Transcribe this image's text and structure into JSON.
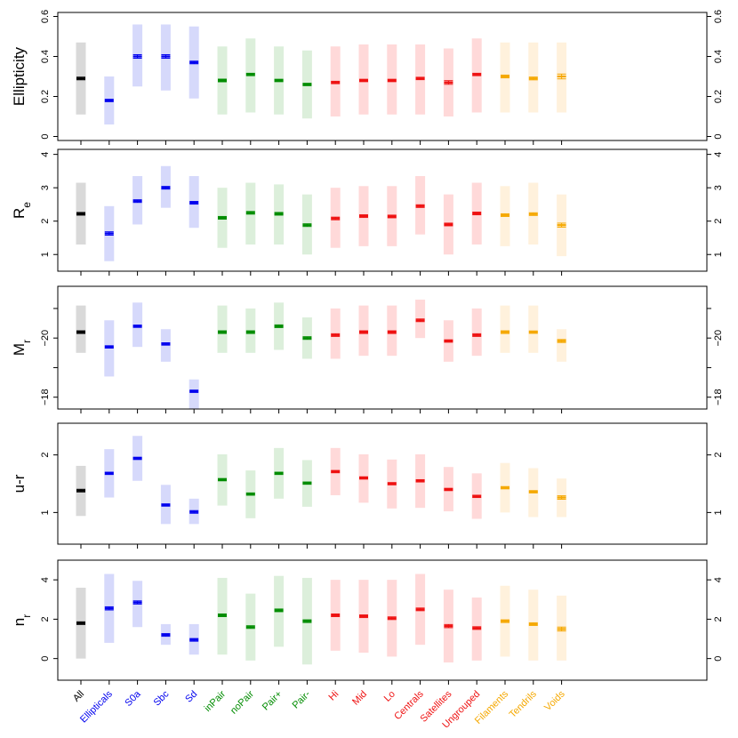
{
  "chart_data": {
    "type": "errorbar-panels",
    "categories": [
      {
        "label": "All",
        "group": "all"
      },
      {
        "label": "Ellipticals",
        "group": "morph"
      },
      {
        "label": "S0a",
        "group": "morph"
      },
      {
        "label": "Sbc",
        "group": "morph"
      },
      {
        "label": "Sd",
        "group": "morph"
      },
      {
        "label": "inPair",
        "group": "pair"
      },
      {
        "label": "noPair",
        "group": "pair"
      },
      {
        "label": "Pair+",
        "group": "pair"
      },
      {
        "label": "Pair-",
        "group": "pair"
      },
      {
        "label": "Hi",
        "group": "group"
      },
      {
        "label": "Mid",
        "group": "group"
      },
      {
        "label": "Lo",
        "group": "group"
      },
      {
        "label": "Centrals",
        "group": "group"
      },
      {
        "label": "Satellites",
        "group": "group"
      },
      {
        "label": "Ungrouped",
        "group": "group"
      },
      {
        "label": "Filaments",
        "group": "web"
      },
      {
        "label": "Tendrils",
        "group": "web"
      },
      {
        "label": "Voids",
        "group": "web"
      }
    ],
    "group_colors": {
      "all": {
        "solid": "#000000",
        "band": "#d9d9d9"
      },
      "morph": {
        "solid": "#0000ee",
        "band": "#d6d9fb"
      },
      "pair": {
        "solid": "#008c00",
        "band": "#dcefdb"
      },
      "group": {
        "solid": "#ee1111",
        "band": "#ffd9d9"
      },
      "web": {
        "solid": "#f5a800",
        "band": "#fff1dc"
      }
    },
    "panels": [
      {
        "ylabel": "Ellipticity",
        "ylim": [
          -0.02,
          0.62
        ],
        "ticks": [
          0,
          0.2,
          0.4,
          0.6
        ],
        "tick_labels": [
          "0",
          "0.2",
          "0.4",
          "0.6"
        ],
        "median": [
          0.29,
          0.18,
          0.4,
          0.4,
          0.37,
          0.28,
          0.31,
          0.28,
          0.26,
          0.27,
          0.28,
          0.28,
          0.29,
          0.27,
          0.31,
          0.3,
          0.29,
          0.3
        ],
        "err": [
          0.004,
          0.006,
          0.009,
          0.009,
          0.005,
          0.005,
          0.006,
          0.006,
          0.006,
          0.006,
          0.006,
          0.006,
          0.006,
          0.009,
          0.006,
          0.007,
          0.007,
          0.012
        ],
        "low": [
          0.11,
          0.06,
          0.25,
          0.23,
          0.19,
          0.11,
          0.12,
          0.11,
          0.09,
          0.1,
          0.11,
          0.11,
          0.11,
          0.1,
          0.12,
          0.12,
          0.12,
          0.12
        ],
        "high": [
          0.47,
          0.3,
          0.56,
          0.56,
          0.55,
          0.45,
          0.49,
          0.45,
          0.43,
          0.45,
          0.46,
          0.46,
          0.46,
          0.44,
          0.49,
          0.47,
          0.47,
          0.47
        ]
      },
      {
        "ylabel": "R",
        "ylabel_sub": "e",
        "ylim": [
          0.5,
          4.15
        ],
        "ticks": [
          1,
          2,
          3,
          4
        ],
        "tick_labels": [
          "1",
          "2",
          "3",
          "4"
        ],
        "median": [
          2.22,
          1.63,
          2.6,
          3.0,
          2.55,
          2.1,
          2.25,
          2.22,
          1.88,
          2.08,
          2.15,
          2.14,
          2.45,
          1.9,
          2.23,
          2.18,
          2.21,
          1.88
        ],
        "err": [
          0.02,
          0.05,
          0.04,
          0.03,
          0.04,
          0.02,
          0.02,
          0.03,
          0.03,
          0.03,
          0.03,
          0.03,
          0.03,
          0.04,
          0.02,
          0.04,
          0.04,
          0.06
        ],
        "low": [
          1.3,
          0.8,
          1.9,
          2.4,
          1.8,
          1.2,
          1.3,
          1.3,
          1.0,
          1.2,
          1.25,
          1.25,
          1.6,
          1.0,
          1.3,
          1.25,
          1.3,
          0.95
        ],
        "high": [
          3.15,
          2.45,
          3.35,
          3.65,
          3.35,
          3.0,
          3.15,
          3.1,
          2.8,
          3.0,
          3.05,
          3.05,
          3.35,
          2.8,
          3.15,
          3.05,
          3.15,
          2.8
        ]
      },
      {
        "ylabel": "M",
        "ylabel_sub": "r",
        "ylim": [
          -21.75,
          -17.6
        ],
        "invert": true,
        "ticks": [
          -18,
          -20
        ],
        "tick_labels": [
          "−18",
          "−20"
        ],
        "minor_ticks": [
          -19,
          -21
        ],
        "median": [
          -20.2,
          -19.7,
          -20.4,
          -19.8,
          -18.2,
          -20.2,
          -20.2,
          -20.4,
          -20.0,
          -20.1,
          -20.2,
          -20.2,
          -20.6,
          -19.9,
          -20.1,
          -20.2,
          -20.2,
          -19.9
        ],
        "err": [
          0.02,
          0.04,
          0.04,
          0.04,
          0.04,
          0.03,
          0.03,
          0.03,
          0.03,
          0.03,
          0.03,
          0.03,
          0.03,
          0.04,
          0.03,
          0.03,
          0.04,
          0.05
        ],
        "low": [
          -21.1,
          -20.6,
          -21.2,
          -20.3,
          -18.6,
          -21.1,
          -21.0,
          -21.2,
          -20.7,
          -21.0,
          -21.1,
          -21.1,
          -21.3,
          -20.6,
          -21.0,
          -21.1,
          -21.1,
          -20.3
        ],
        "high": [
          -19.5,
          -18.7,
          -19.7,
          -19.2,
          -17.6,
          -19.5,
          -19.5,
          -19.6,
          -19.3,
          -19.3,
          -19.4,
          -19.4,
          -20.0,
          -19.2,
          -19.4,
          -19.5,
          -19.5,
          -19.2
        ]
      },
      {
        "ylabel": "u-r",
        "ylim": [
          0.45,
          2.55
        ],
        "ticks": [
          1,
          2
        ],
        "tick_labels": [
          "1",
          "2"
        ],
        "median": [
          1.38,
          1.68,
          1.94,
          1.13,
          1.01,
          1.57,
          1.32,
          1.68,
          1.51,
          1.71,
          1.6,
          1.5,
          1.55,
          1.4,
          1.28,
          1.43,
          1.36,
          1.26
        ],
        "err": [
          0.01,
          0.02,
          0.02,
          0.02,
          0.01,
          0.02,
          0.02,
          0.02,
          0.02,
          0.02,
          0.02,
          0.02,
          0.02,
          0.02,
          0.02,
          0.02,
          0.02,
          0.03
        ],
        "low": [
          0.94,
          1.26,
          1.55,
          0.8,
          0.8,
          1.12,
          0.9,
          1.24,
          1.1,
          1.3,
          1.17,
          1.07,
          1.08,
          1.02,
          0.89,
          1.0,
          0.92,
          0.92
        ],
        "high": [
          1.81,
          2.1,
          2.33,
          1.48,
          1.24,
          2.01,
          1.73,
          2.12,
          1.91,
          2.12,
          2.01,
          1.92,
          2.01,
          1.79,
          1.68,
          1.86,
          1.77,
          1.59
        ]
      },
      {
        "ylabel": "n",
        "ylabel_sub": "r",
        "ylim": [
          -1.1,
          5.0
        ],
        "ticks": [
          0,
          2,
          4
        ],
        "tick_labels": [
          "0",
          "2",
          "4"
        ],
        "median": [
          1.8,
          2.55,
          2.85,
          1.2,
          0.95,
          2.2,
          1.6,
          2.45,
          1.9,
          2.2,
          2.15,
          2.05,
          2.5,
          1.65,
          1.55,
          1.9,
          1.75,
          1.5
        ],
        "err": [
          0.03,
          0.08,
          0.08,
          0.05,
          0.05,
          0.05,
          0.04,
          0.05,
          0.05,
          0.05,
          0.05,
          0.05,
          0.05,
          0.08,
          0.05,
          0.05,
          0.05,
          0.1
        ],
        "low": [
          0.0,
          0.8,
          1.6,
          0.7,
          0.2,
          0.2,
          -0.1,
          0.6,
          -0.3,
          0.4,
          0.3,
          0.1,
          0.7,
          -0.2,
          -0.1,
          0.1,
          -0.1,
          -0.1
        ],
        "high": [
          3.6,
          4.3,
          3.95,
          1.75,
          1.75,
          4.1,
          3.3,
          4.2,
          4.1,
          4.0,
          4.0,
          4.0,
          4.3,
          3.5,
          3.1,
          3.7,
          3.5,
          3.2
        ]
      }
    ]
  }
}
